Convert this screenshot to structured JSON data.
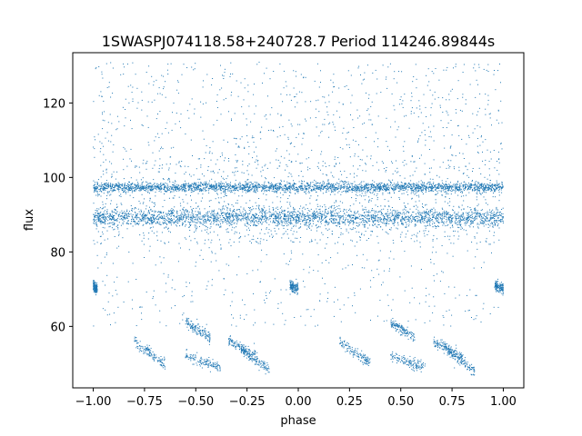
{
  "chart_data": {
    "type": "scatter",
    "title": "1SWASPJ074118.58+240728.7 Period 114246.89844s",
    "xlabel": "phase",
    "ylabel": "flux",
    "xlim": [
      -1.1,
      1.1
    ],
    "ylim": [
      43.5,
      133.5
    ],
    "xticks": [
      -1.0,
      -0.75,
      -0.5,
      -0.25,
      0.0,
      0.25,
      0.5,
      0.75,
      1.0
    ],
    "xtick_labels": [
      "−1.00",
      "−0.75",
      "−0.50",
      "−0.25",
      "0.00",
      "0.25",
      "0.50",
      "0.75",
      "1.00"
    ],
    "yticks": [
      60,
      80,
      100,
      120
    ],
    "ytick_labels": [
      "60",
      "80",
      "100",
      "120"
    ],
    "grid": false,
    "marker_color": "#1f77b4",
    "series": [
      {
        "bands": [
          {
            "x_range": [
              -1.0,
              1.0
            ],
            "y_center": 97.3,
            "y_spread": 1.2
          },
          {
            "x_range": [
              -1.0,
              1.0
            ],
            "y_center": 89.2,
            "y_spread": 2.2
          }
        ],
        "scattered_range": {
          "x": [
            -1.0,
            1.0
          ],
          "y": [
            46,
            131
          ]
        },
        "clusters": [
          {
            "x": [
              -0.8,
              -0.65
            ],
            "y": [
              56,
              50
            ]
          },
          {
            "x": [
              -0.55,
              -0.43
            ],
            "y": [
              61,
              57
            ]
          },
          {
            "x": [
              -0.55,
              -0.38
            ],
            "y": [
              52,
              49
            ]
          },
          {
            "x": [
              -0.34,
              -0.2
            ],
            "y": [
              56,
              52
            ]
          },
          {
            "x": [
              -0.28,
              -0.14
            ],
            "y": [
              54,
              48
            ]
          },
          {
            "x": [
              0.2,
              0.35
            ],
            "y": [
              56,
              50
            ]
          },
          {
            "x": [
              0.45,
              0.57
            ],
            "y": [
              61,
              57
            ]
          },
          {
            "x": [
              0.45,
              0.62
            ],
            "y": [
              52,
              49
            ]
          },
          {
            "x": [
              0.66,
              0.8
            ],
            "y": [
              56,
              52
            ]
          },
          {
            "x": [
              0.72,
              0.86
            ],
            "y": [
              54,
              48
            ]
          },
          {
            "x": [
              -0.04,
              0.0
            ],
            "y": [
              71,
              70
            ]
          },
          {
            "x": [
              0.96,
              1.0
            ],
            "y": [
              71,
              70
            ]
          },
          {
            "x": [
              -1.0,
              -0.98
            ],
            "y": [
              71,
              70
            ]
          }
        ]
      }
    ]
  }
}
